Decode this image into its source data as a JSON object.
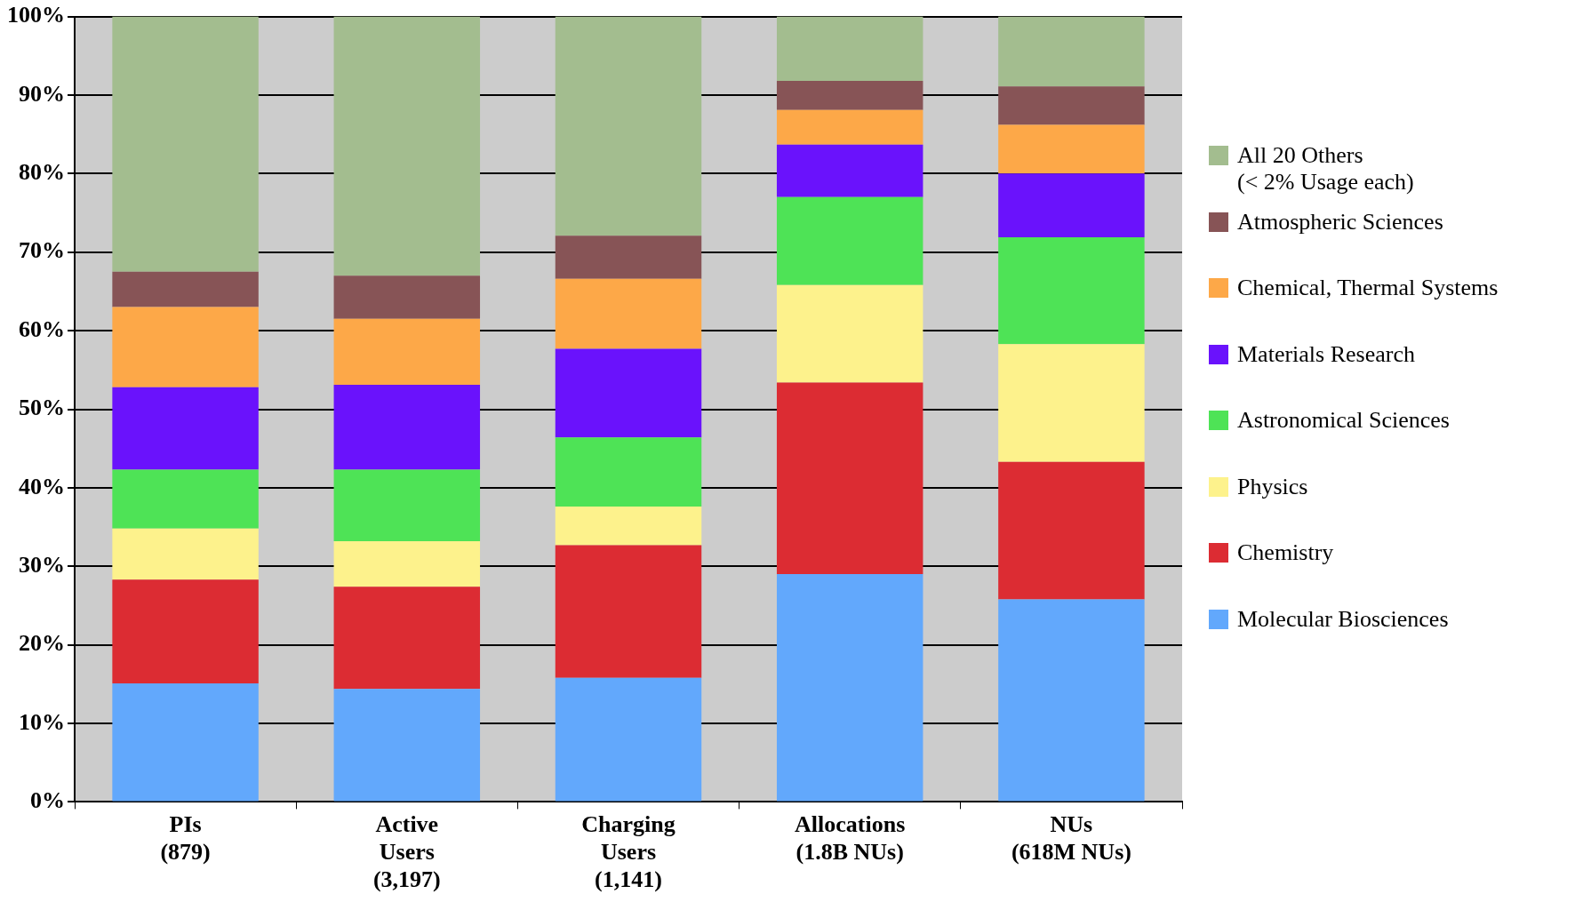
{
  "chart_data": {
    "type": "bar",
    "stacked": true,
    "grid": "y",
    "legend": "right",
    "categories": [
      "PIs\n(879)",
      "Active\nUsers\n(3,197)",
      "Charging\nUsers\n(1,141)",
      "Allocations\n(1.8B NUs)",
      "NUs\n(618M NUs)"
    ],
    "ylim": [
      0,
      100
    ],
    "yticks": [
      {
        "value": 0,
        "label": "0%"
      },
      {
        "value": 10,
        "label": "10%"
      },
      {
        "value": 20,
        "label": "20%"
      },
      {
        "value": 30,
        "label": "30%"
      },
      {
        "value": 40,
        "label": "40%"
      },
      {
        "value": 50,
        "label": "50%"
      },
      {
        "value": 60,
        "label": "60%"
      },
      {
        "value": 70,
        "label": "70%"
      },
      {
        "value": 80,
        "label": "80%"
      },
      {
        "value": 90,
        "label": "90%"
      },
      {
        "value": 100,
        "label": "100%"
      }
    ],
    "series": [
      {
        "name": "Molecular Biosciences",
        "color": "#62a8fc",
        "values": [
          15.1,
          14.4,
          15.8,
          29.0,
          25.8
        ]
      },
      {
        "name": "Chemistry",
        "color": "#dc2c33",
        "values": [
          13.2,
          13.0,
          16.9,
          24.4,
          17.5
        ]
      },
      {
        "name": "Physics",
        "color": "#fdf28c",
        "values": [
          6.5,
          5.8,
          4.9,
          12.4,
          15.0
        ]
      },
      {
        "name": "Astronomical Sciences",
        "color": "#4ee356",
        "values": [
          7.5,
          9.1,
          8.8,
          11.2,
          13.6
        ]
      },
      {
        "name": "Materials Research",
        "color": "#6a12fc",
        "values": [
          10.5,
          10.8,
          11.3,
          6.7,
          8.1
        ]
      },
      {
        "name": "Chemical, Thermal Systems",
        "color": "#fda848",
        "values": [
          10.2,
          8.4,
          8.9,
          4.4,
          6.2
        ]
      },
      {
        "name": "Atmospheric Sciences",
        "color": "#875456",
        "values": [
          4.5,
          5.5,
          5.5,
          3.7,
          4.9
        ]
      },
      {
        "name": "All 20 Others\n(< 2% Usage each)",
        "color": "#a3bd8f",
        "values": [
          32.5,
          33.0,
          27.9,
          8.2,
          8.9
        ]
      }
    ]
  }
}
